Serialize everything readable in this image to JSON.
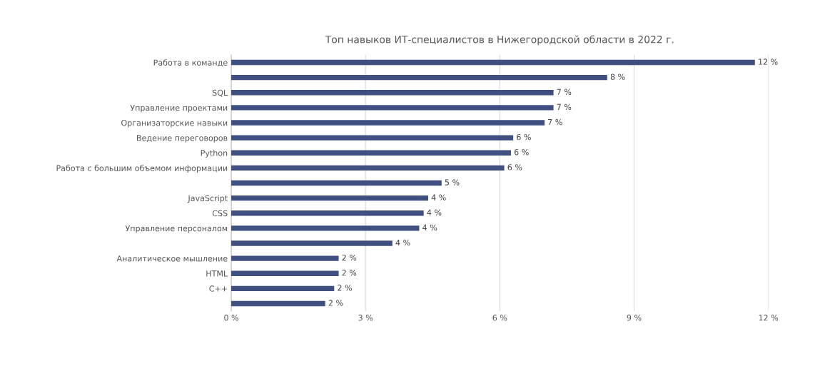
{
  "chart_data": {
    "type": "bar",
    "orientation": "horizontal",
    "title": "Топ навыков ИТ-специалистов в Нижегородской области в 2022 г.",
    "categories": [
      "Работа в команде",
      null,
      "SQL",
      "Управление проектами",
      "Организаторские навыки",
      "Ведение переговоров",
      "Python",
      "Работа с большим объемом информации",
      null,
      "JavaScript",
      "CSS",
      "Управление персоналом",
      null,
      "Аналитическое мышление",
      "HTML",
      "C++",
      null
    ],
    "values": [
      11.7,
      8.4,
      7.2,
      7.2,
      7.0,
      6.3,
      6.25,
      6.1,
      4.7,
      4.4,
      4.3,
      4.2,
      3.6,
      2.4,
      2.4,
      2.3,
      2.1
    ],
    "value_labels": [
      "12 %",
      "8 %",
      "7 %",
      "7 %",
      "7 %",
      "6 %",
      "6 %",
      "6 %",
      "5 %",
      "4 %",
      "4 %",
      "4 %",
      "4 %",
      "2 %",
      "2 %",
      "2 %",
      "2 %"
    ],
    "color": "#3f4f80",
    "xlim": [
      0,
      12
    ],
    "xticks": [
      {
        "value": 0,
        "label": "0 %"
      },
      {
        "value": 3,
        "label": "3 %"
      },
      {
        "value": 6,
        "label": "6 %"
      },
      {
        "value": 9,
        "label": "9 %"
      },
      {
        "value": 12,
        "label": "12 %"
      }
    ],
    "grid": "x"
  }
}
